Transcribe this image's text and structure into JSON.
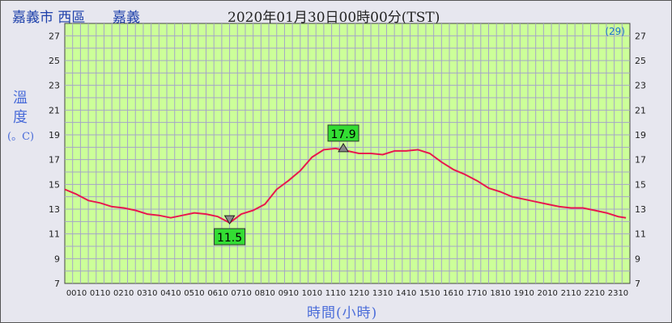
{
  "header": {
    "location": "嘉義市 西區",
    "station": "嘉義",
    "datetime": "2020年01月30日00時00分(TST)"
  },
  "chart_data": {
    "type": "line",
    "ylabel_chars": [
      "溫",
      "度"
    ],
    "yunit": "(。C)",
    "xlabel": "時間(小時)",
    "corner_label": "(29)",
    "ylim": [
      7,
      28
    ],
    "yticks": [
      7,
      9,
      11,
      13,
      15,
      17,
      19,
      21,
      23,
      25,
      27
    ],
    "xticks": [
      "0010",
      "0110",
      "0210",
      "0310",
      "0410",
      "0510",
      "0610",
      "0710",
      "0810",
      "0910",
      "1010",
      "1110",
      "1210",
      "1310",
      "1410",
      "1510",
      "1610",
      "1710",
      "1810",
      "1910",
      "2010",
      "2110",
      "2210",
      "2310"
    ],
    "x_hours": [
      0,
      0.5,
      1,
      1.5,
      2,
      2.5,
      3,
      3.5,
      4,
      4.5,
      5,
      5.5,
      6,
      6.5,
      7,
      7.5,
      8,
      8.5,
      9,
      9.5,
      10,
      10.5,
      11,
      11.5,
      12,
      12.5,
      13,
      13.5,
      14,
      14.5,
      15,
      15.5,
      16,
      16.5,
      17,
      17.5,
      18,
      18.5,
      19,
      19.5,
      20,
      20.5,
      21,
      21.5,
      22,
      22.5,
      23,
      23.5,
      23.83
    ],
    "values": [
      14.6,
      14.2,
      13.7,
      13.5,
      13.2,
      13.1,
      12.9,
      12.6,
      12.5,
      12.3,
      12.5,
      12.7,
      12.6,
      12.4,
      11.9,
      12.6,
      12.9,
      13.4,
      14.6,
      15.3,
      16.1,
      17.2,
      17.8,
      17.9,
      17.7,
      17.5,
      17.5,
      17.4,
      17.7,
      17.7,
      17.8,
      17.5,
      16.8,
      16.2,
      15.8,
      15.3,
      14.7,
      14.4,
      14.0,
      13.8,
      13.6,
      13.4,
      13.2,
      13.1,
      13.1,
      12.9,
      12.7,
      12.4,
      12.3
    ],
    "line_color": "#e8184e",
    "plot_bg": "#ccff99",
    "max_label": "17.9",
    "max_hour": 11.83,
    "min_label": "11.5",
    "min_hour": 7.0
  }
}
